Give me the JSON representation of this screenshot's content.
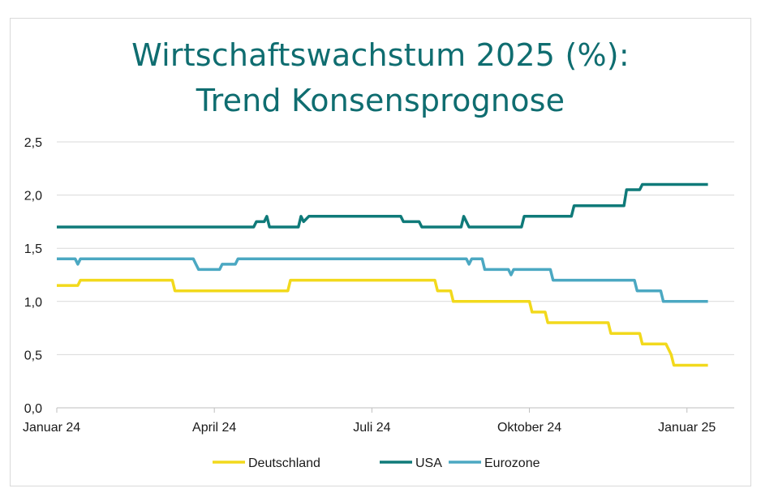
{
  "chart_data": {
    "type": "line",
    "title_line1": "Wirtschaftswachstum 2025 (%):",
    "title_line2": "Trend Konsensprognose",
    "xlabel": "",
    "ylabel": "",
    "ylim": [
      0,
      2.5
    ],
    "yticks": [
      {
        "value": 0.0,
        "label": "0,0"
      },
      {
        "value": 0.5,
        "label": "0,5"
      },
      {
        "value": 1.0,
        "label": "1,0"
      },
      {
        "value": 1.5,
        "label": "1,5"
      },
      {
        "value": 2.0,
        "label": "2,0"
      },
      {
        "value": 2.5,
        "label": "2,5"
      }
    ],
    "xlim": [
      0,
      12.9
    ],
    "xticks": [
      {
        "value": 0,
        "label": "Januar 24"
      },
      {
        "value": 3,
        "label": "April 24"
      },
      {
        "value": 6,
        "label": "Juli 24"
      },
      {
        "value": 9,
        "label": "Oktober 24"
      },
      {
        "value": 12,
        "label": "Januar 25"
      }
    ],
    "grid": true,
    "legend_position": "bottom",
    "series": [
      {
        "name": "Deutschland",
        "color": "#f2d91c",
        "points": [
          [
            0,
            1.15
          ],
          [
            0.4,
            1.15
          ],
          [
            0.45,
            1.2
          ],
          [
            2.2,
            1.2
          ],
          [
            2.25,
            1.1
          ],
          [
            4.4,
            1.1
          ],
          [
            4.45,
            1.2
          ],
          [
            7.2,
            1.2
          ],
          [
            7.25,
            1.1
          ],
          [
            7.5,
            1.1
          ],
          [
            7.55,
            1.0
          ],
          [
            9.0,
            1.0
          ],
          [
            9.05,
            0.9
          ],
          [
            9.3,
            0.9
          ],
          [
            9.35,
            0.8
          ],
          [
            10.5,
            0.8
          ],
          [
            10.55,
            0.7
          ],
          [
            11.1,
            0.7
          ],
          [
            11.15,
            0.6
          ],
          [
            11.6,
            0.6
          ],
          [
            11.7,
            0.5
          ],
          [
            11.75,
            0.4
          ],
          [
            12.4,
            0.4
          ]
        ]
      },
      {
        "name": "USA",
        "color": "#0f7a79",
        "points": [
          [
            0,
            1.7
          ],
          [
            3.75,
            1.7
          ],
          [
            3.8,
            1.75
          ],
          [
            3.95,
            1.75
          ],
          [
            4.0,
            1.8
          ],
          [
            4.05,
            1.7
          ],
          [
            4.6,
            1.7
          ],
          [
            4.65,
            1.8
          ],
          [
            4.7,
            1.75
          ],
          [
            4.8,
            1.8
          ],
          [
            6.55,
            1.8
          ],
          [
            6.6,
            1.75
          ],
          [
            6.9,
            1.75
          ],
          [
            6.95,
            1.7
          ],
          [
            7.7,
            1.7
          ],
          [
            7.75,
            1.8
          ],
          [
            7.85,
            1.7
          ],
          [
            8.85,
            1.7
          ],
          [
            8.9,
            1.8
          ],
          [
            9.8,
            1.8
          ],
          [
            9.85,
            1.9
          ],
          [
            10.8,
            1.9
          ],
          [
            10.85,
            2.05
          ],
          [
            11.1,
            2.05
          ],
          [
            11.15,
            2.1
          ],
          [
            12.4,
            2.1
          ]
        ]
      },
      {
        "name": "Eurozone",
        "color": "#4ba8c2",
        "points": [
          [
            0,
            1.4
          ],
          [
            0.35,
            1.4
          ],
          [
            0.4,
            1.35
          ],
          [
            0.45,
            1.4
          ],
          [
            2.6,
            1.4
          ],
          [
            2.65,
            1.35
          ],
          [
            2.7,
            1.3
          ],
          [
            3.1,
            1.3
          ],
          [
            3.15,
            1.35
          ],
          [
            3.4,
            1.35
          ],
          [
            3.45,
            1.4
          ],
          [
            7.8,
            1.4
          ],
          [
            7.85,
            1.35
          ],
          [
            7.9,
            1.4
          ],
          [
            8.1,
            1.4
          ],
          [
            8.15,
            1.3
          ],
          [
            8.6,
            1.3
          ],
          [
            8.65,
            1.25
          ],
          [
            8.7,
            1.3
          ],
          [
            9.4,
            1.3
          ],
          [
            9.45,
            1.2
          ],
          [
            11.0,
            1.2
          ],
          [
            11.05,
            1.1
          ],
          [
            11.5,
            1.1
          ],
          [
            11.55,
            1.0
          ],
          [
            12.4,
            1.0
          ]
        ]
      }
    ]
  }
}
